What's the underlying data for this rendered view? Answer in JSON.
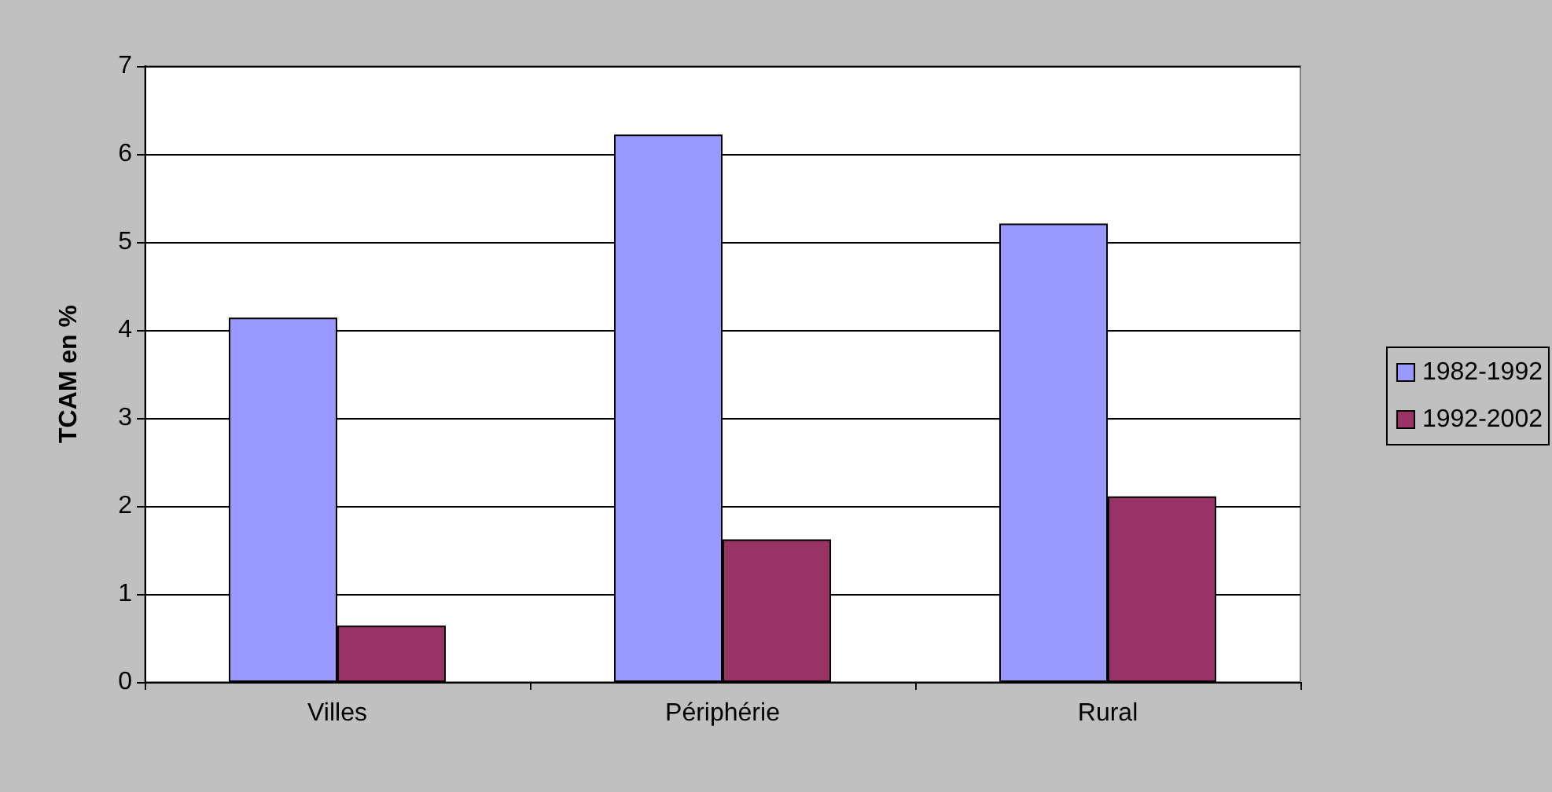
{
  "chart_data": {
    "type": "bar",
    "ylabel": "TCAM en %",
    "categories": [
      "Villes",
      "Périphérie",
      "Rural"
    ],
    "series": [
      {
        "name": "1982-1992",
        "color": "#9999ff",
        "values": [
          4.14,
          6.22,
          5.21
        ]
      },
      {
        "name": "1992-2002",
        "color": "#993366",
        "values": [
          0.64,
          1.62,
          2.11
        ]
      }
    ],
    "ylim": [
      0,
      7
    ],
    "yticks": [
      0,
      1,
      2,
      3,
      4,
      5,
      6,
      7
    ],
    "grid": "y",
    "legend": "right"
  }
}
